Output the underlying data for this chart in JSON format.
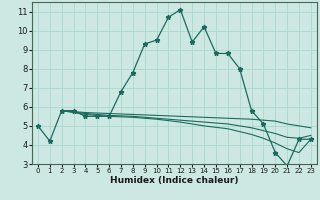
{
  "xlabel": "Humidex (Indice chaleur)",
  "ylabel": "",
  "xlim": [
    -0.5,
    23.5
  ],
  "ylim": [
    3,
    11.5
  ],
  "yticks": [
    3,
    4,
    5,
    6,
    7,
    8,
    9,
    10,
    11
  ],
  "xticks": [
    0,
    1,
    2,
    3,
    4,
    5,
    6,
    7,
    8,
    9,
    10,
    11,
    12,
    13,
    14,
    15,
    16,
    17,
    18,
    19,
    20,
    21,
    22,
    23
  ],
  "bg_color": "#cde8e2",
  "line_color": "#1a6b5e",
  "grid_color": "#aad8ce",
  "lines": [
    {
      "x": [
        0,
        1,
        2,
        3,
        4,
        5,
        6,
        7,
        8,
        9,
        10,
        11,
        12,
        13,
        14,
        15,
        16,
        17,
        18,
        19,
        20,
        21,
        22,
        23
      ],
      "y": [
        5.0,
        4.2,
        5.8,
        5.8,
        5.5,
        5.5,
        5.5,
        6.8,
        7.8,
        9.3,
        9.5,
        10.7,
        11.1,
        9.4,
        10.2,
        8.8,
        8.8,
        8.0,
        5.8,
        5.1,
        3.6,
        2.9,
        4.3,
        4.3
      ],
      "marker": true
    },
    {
      "x": [
        2,
        4,
        6,
        8,
        10,
        12,
        14,
        16,
        18,
        19,
        20,
        21,
        22,
        23
      ],
      "y": [
        5.8,
        5.7,
        5.65,
        5.6,
        5.55,
        5.5,
        5.45,
        5.4,
        5.35,
        5.3,
        5.25,
        5.1,
        5.0,
        4.9
      ],
      "marker": false
    },
    {
      "x": [
        2,
        4,
        6,
        8,
        10,
        12,
        14,
        16,
        18,
        19,
        20,
        21,
        22,
        23
      ],
      "y": [
        5.8,
        5.65,
        5.55,
        5.5,
        5.4,
        5.3,
        5.2,
        5.1,
        4.9,
        4.75,
        4.6,
        4.4,
        4.35,
        4.5
      ],
      "marker": false
    },
    {
      "x": [
        2,
        4,
        6,
        8,
        10,
        12,
        14,
        16,
        18,
        19,
        20,
        21,
        22,
        23
      ],
      "y": [
        5.8,
        5.6,
        5.5,
        5.45,
        5.35,
        5.2,
        5.0,
        4.85,
        4.55,
        4.35,
        4.1,
        3.8,
        3.6,
        4.3
      ],
      "marker": false
    }
  ]
}
